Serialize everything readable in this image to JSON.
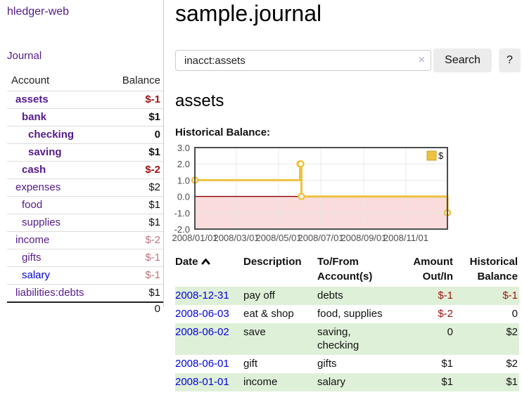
{
  "colors": {
    "link_purple": "#551a8b",
    "link_blue": "#0202dd",
    "negative_red": "#a01414",
    "faded_negative_red": "#c0747c",
    "row_green": "#dff0d8",
    "chart_line_gold": "#edc240",
    "chart_negative_fill": "#fadcdc",
    "chart_zero_line": "#8b0000"
  },
  "brand": {
    "title": "hledger-web"
  },
  "nav": {
    "journal": "Journal"
  },
  "sidebar": {
    "col_account": "Account",
    "col_balance": "Balance",
    "rows": [
      {
        "account": "assets",
        "balance": "$-1",
        "depth": 1,
        "bold": true,
        "link_color": "purple",
        "balance_color": "negative"
      },
      {
        "account": "bank",
        "balance": "$1",
        "depth": 2,
        "bold": true,
        "link_color": "purple",
        "balance_color": "normal"
      },
      {
        "account": "checking",
        "balance": "0",
        "depth": 3,
        "bold": true,
        "link_color": "purple",
        "balance_color": "normal"
      },
      {
        "account": "saving",
        "balance": "$1",
        "depth": 3,
        "bold": true,
        "link_color": "purple",
        "balance_color": "normal"
      },
      {
        "account": "cash",
        "balance": "$-2",
        "depth": 2,
        "bold": true,
        "link_color": "purple",
        "balance_color": "negative"
      },
      {
        "account": "expenses",
        "balance": "$2",
        "depth": 1,
        "bold": false,
        "link_color": "purple",
        "balance_color": "normal"
      },
      {
        "account": "food",
        "balance": "$1",
        "depth": 2,
        "bold": false,
        "link_color": "purple",
        "balance_color": "normal"
      },
      {
        "account": "supplies",
        "balance": "$1",
        "depth": 2,
        "bold": false,
        "link_color": "purple",
        "balance_color": "normal"
      },
      {
        "account": "income",
        "balance": "$-2",
        "depth": 1,
        "bold": false,
        "link_color": "purple",
        "balance_color": "faded-negative"
      },
      {
        "account": "gifts",
        "balance": "$-1",
        "depth": 2,
        "bold": false,
        "link_color": "purple",
        "balance_color": "faded-negative"
      },
      {
        "account": "salary",
        "balance": "$-1",
        "depth": 2,
        "bold": false,
        "link_color": "blue",
        "balance_color": "faded-negative"
      },
      {
        "account": "liabilities:debts",
        "balance": "$1",
        "depth": 1,
        "bold": false,
        "link_color": "purple",
        "balance_color": "normal"
      }
    ],
    "total": "0"
  },
  "main": {
    "title": "sample.journal",
    "search": {
      "value": "inacct:assets",
      "clear": "×",
      "submit": "Search",
      "help": "?"
    },
    "account_title": "assets",
    "chart_heading": "Historical Balance:"
  },
  "chart_data": {
    "type": "line",
    "step": true,
    "title": "Historical Balance",
    "series": [
      {
        "name": "$",
        "points": [
          {
            "date": "2008-01-01",
            "value": 1
          },
          {
            "date": "2008-06-01",
            "value": 2
          },
          {
            "date": "2008-06-02",
            "value": 2
          },
          {
            "date": "2008-06-03",
            "value": 0
          },
          {
            "date": "2008-12-31",
            "value": -1
          }
        ]
      }
    ],
    "xrange": [
      "2008-01-01",
      "2008-12-31"
    ],
    "ylim": [
      -2,
      3
    ],
    "yticks": [
      "3.0",
      "2.0",
      "1.0",
      "0.0",
      "-1.0",
      "-2.0"
    ],
    "xticks": [
      {
        "label": "2008/01/01",
        "date": "2008-01-01"
      },
      {
        "label": "2008/03/01",
        "date": "2008-03-01"
      },
      {
        "label": "2008/05/01",
        "date": "2008-05-01"
      },
      {
        "label": "2008/07/01",
        "date": "2008-07-01"
      },
      {
        "label": "2008/09/01",
        "date": "2008-09-01"
      },
      {
        "label": "2008/11/01",
        "date": "2008-11-01"
      }
    ],
    "legend": [
      {
        "label": "$",
        "color": "#edc240"
      }
    ],
    "legend_position": "top-right",
    "grid": true
  },
  "register": {
    "columns": [
      {
        "label": "Date",
        "sort": "asc"
      },
      {
        "label": "Description"
      },
      {
        "label": "To/From Account(s)"
      },
      {
        "label": "Amount Out/In",
        "align": "right"
      },
      {
        "label": "Historical Balance",
        "align": "right"
      }
    ],
    "rows": [
      {
        "date": "2008-12-31",
        "description": "pay off",
        "accounts": "debts",
        "amount": "$-1",
        "amount_neg": true,
        "balance": "$-1",
        "balance_neg": true
      },
      {
        "date": "2008-06-03",
        "description": "eat & shop",
        "accounts": "food, supplies",
        "amount": "$-2",
        "amount_neg": true,
        "balance": "0",
        "balance_neg": false
      },
      {
        "date": "2008-06-02",
        "description": "save",
        "accounts": "saving, checking",
        "amount": "0",
        "amount_neg": false,
        "balance": "$2",
        "balance_neg": false
      },
      {
        "date": "2008-06-01",
        "description": "gift",
        "accounts": "gifts",
        "amount": "$1",
        "amount_neg": false,
        "balance": "$2",
        "balance_neg": false
      },
      {
        "date": "2008-01-01",
        "description": "income",
        "accounts": "salary",
        "amount": "$1",
        "amount_neg": false,
        "balance": "$1",
        "balance_neg": false
      }
    ]
  }
}
